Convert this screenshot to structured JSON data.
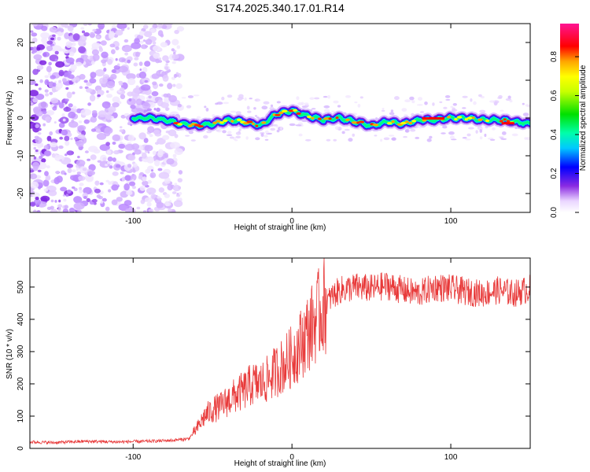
{
  "title": "S174.2025.340.17.01.R14",
  "chart_data": [
    {
      "type": "heatmap",
      "xlabel": "Height of straight line (km)",
      "ylabel": "Frequency (Hz)",
      "xlim": [
        -165,
        150
      ],
      "ylim": [
        -25,
        25
      ],
      "xticks": [
        -100,
        0,
        100
      ],
      "yticks": [
        -20,
        -10,
        0,
        10,
        20
      ],
      "colorbar": {
        "label": "Normalized spectral amplitude",
        "range": [
          0,
          0.97
        ],
        "ticks": [
          0.0,
          0.2,
          0.4,
          0.6,
          0.8
        ]
      },
      "ridge_x": [
        -100,
        -90,
        -80,
        -70,
        -60,
        -50,
        -40,
        -30,
        -20,
        -10,
        0,
        10,
        20,
        30,
        40,
        50,
        60,
        70,
        80,
        90,
        100,
        110,
        120,
        130,
        140,
        150
      ],
      "ridge_freq_hz": [
        0,
        0,
        -0.5,
        -1.5,
        -2,
        -1.5,
        -0.5,
        -1,
        -2,
        1,
        2,
        0.5,
        -0.5,
        0,
        -1,
        -2,
        -1,
        -1.5,
        -0.5,
        -0.5,
        0,
        0,
        -0.5,
        -0.5,
        -1,
        -1.5
      ],
      "noise_region_x": [
        -165,
        -70
      ]
    },
    {
      "type": "line",
      "xlabel": "Height of straight line (km)",
      "ylabel": "SNR (10 * v/v)",
      "xlim": [
        -165,
        150
      ],
      "ylim": [
        0,
        590
      ],
      "xticks": [
        -100,
        0,
        100
      ],
      "yticks": [
        0,
        100,
        200,
        300,
        400,
        500
      ],
      "series": [
        {
          "name": "SNR",
          "color": "#e83a3a",
          "x": [
            -165,
            -150,
            -130,
            -110,
            -90,
            -75,
            -65,
            -60,
            -55,
            -50,
            -45,
            -40,
            -35,
            -30,
            -25,
            -20,
            -15,
            -10,
            -5,
            0,
            5,
            10,
            15,
            20,
            25,
            30,
            40,
            50,
            60,
            70,
            80,
            90,
            100,
            110,
            120,
            130,
            140,
            150
          ],
          "values": [
            20,
            18,
            22,
            20,
            22,
            25,
            30,
            60,
            100,
            120,
            130,
            150,
            165,
            180,
            200,
            200,
            215,
            240,
            260,
            285,
            320,
            360,
            400,
            440,
            470,
            490,
            500,
            495,
            505,
            490,
            480,
            500,
            495,
            485,
            480,
            490,
            480,
            495
          ]
        }
      ]
    }
  ]
}
